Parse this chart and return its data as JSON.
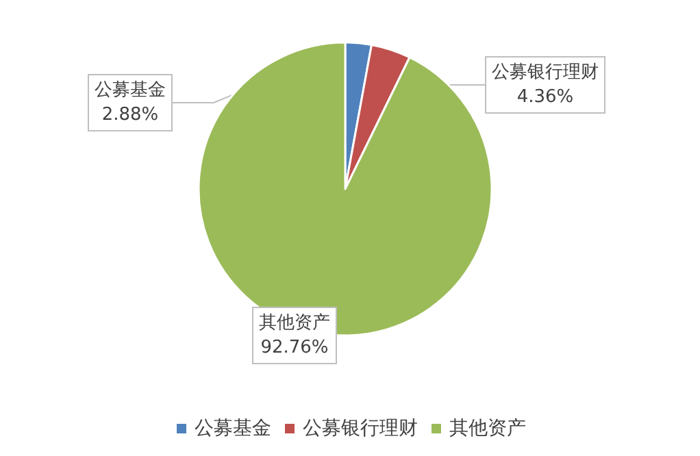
{
  "chart_data": {
    "type": "pie",
    "categories": [
      "公募基金",
      "公募银行理财",
      "其他资产"
    ],
    "values": [
      2.88,
      4.36,
      92.76
    ],
    "colors": [
      "#4f81bd",
      "#c0504d",
      "#9bbb59"
    ],
    "value_labels": [
      "2.88%",
      "4.36%",
      "92.76%"
    ],
    "legend": "bottom"
  }
}
